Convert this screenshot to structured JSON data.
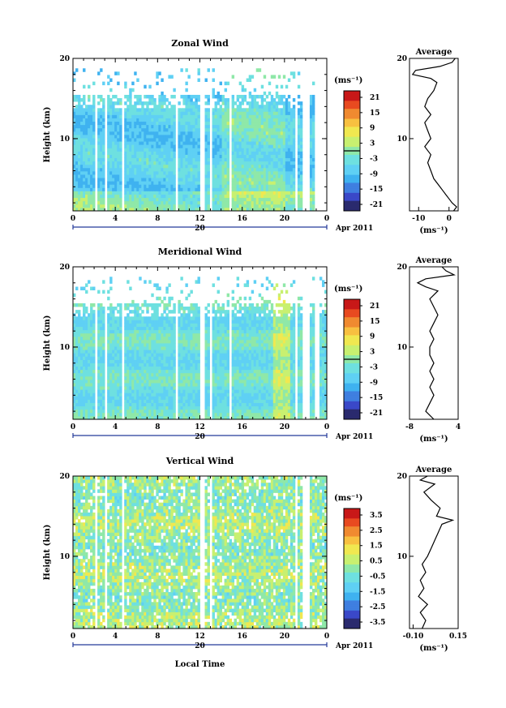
{
  "figure": {
    "xlabel": "Local Time",
    "date_label": "Apr 2011",
    "day_label": "20"
  },
  "panels": [
    {
      "key": "zonal",
      "title": "Zonal Wind",
      "unit": "(ms⁻¹)",
      "avg_title": "Average",
      "avg_xlabel": "(ms⁻¹)",
      "yticks": [
        "20",
        "10"
      ],
      "xticks": [
        "0",
        "4",
        "8",
        "12",
        "16",
        "20",
        "0"
      ],
      "cbar_labels": [
        "21",
        "15",
        "9",
        "3",
        "-3",
        "-9",
        "-15",
        "-21"
      ],
      "avg_xticks": [
        "-10",
        "0"
      ]
    },
    {
      "key": "meridional",
      "title": "Meridional Wind",
      "unit": "(ms⁻¹)",
      "avg_title": "Average",
      "avg_xlabel": "(ms⁻¹)",
      "yticks": [
        "20",
        "10"
      ],
      "xticks": [
        "0",
        "4",
        "8",
        "12",
        "16",
        "20",
        "0"
      ],
      "cbar_labels": [
        "21",
        "15",
        "9",
        "3",
        "-3",
        "-9",
        "-15",
        "-21"
      ],
      "avg_xticks": [
        "-8",
        "4"
      ]
    },
    {
      "key": "vertical",
      "title": "Vertical Wind",
      "unit": "(ms⁻¹)",
      "avg_title": "Average",
      "avg_xlabel": "(ms⁻¹)",
      "yticks": [
        "20",
        "10"
      ],
      "xticks": [
        "0",
        "4",
        "8",
        "12",
        "16",
        "20",
        "0"
      ],
      "cbar_labels": [
        "3.5",
        "2.5",
        "1.5",
        "0.5",
        "-0.5",
        "-1.5",
        "-2.5",
        "-3.5"
      ],
      "avg_xticks": [
        "-0.10",
        "0.15"
      ]
    }
  ],
  "chart_data": [
    {
      "type": "heatmap",
      "title": "Zonal Wind",
      "ylabel": "Height (km)",
      "xlabel": "",
      "x_unit": "local time (h)",
      "xlim": [
        0,
        24
      ],
      "ylim": [
        1,
        20
      ],
      "clim": [
        -24,
        24
      ],
      "colors": [
        "#2a2a6e",
        "#3a48c8",
        "#3f7fe0",
        "#3fb2f0",
        "#6ed8f0",
        "#8fe8a8",
        "#d8f060",
        "#f8e040",
        "#f8a830",
        "#f06020",
        "#d82010"
      ],
      "columns_missing": [
        [
          2.1,
          2.4
        ],
        [
          3.0,
          3.3
        ],
        [
          4.6,
          4.9
        ],
        [
          9.7,
          10.0
        ],
        [
          11.9,
          12.5
        ],
        [
          12.9,
          13.1
        ],
        [
          14.7,
          15.0
        ],
        [
          20.9,
          21.2
        ],
        [
          21.8,
          22.3
        ],
        [
          22.8,
          23.2
        ],
        [
          23.3,
          24
        ]
      ],
      "description_values": "mostly -6 to -12 m/s, near -3 below 4 km",
      "average_profile": {
        "xlim": [
          -13,
          3
        ],
        "height_km": [
          1,
          1.5,
          2,
          2.5,
          3,
          3.5,
          4,
          5,
          6,
          7,
          8,
          9,
          10,
          11,
          12,
          13,
          14,
          15,
          16,
          17,
          17.5,
          18,
          18.5,
          19,
          19.5,
          20
        ],
        "values": [
          1.5,
          2.5,
          1,
          0,
          -1,
          -2,
          -3,
          -5,
          -6,
          -7,
          -6,
          -8,
          -6,
          -7,
          -8,
          -6,
          -8,
          -7,
          -5,
          -4,
          -6,
          -12,
          -11,
          -3,
          1,
          2
        ]
      }
    },
    {
      "type": "heatmap",
      "title": "Meridional Wind",
      "ylabel": "Height (km)",
      "xlabel": "",
      "x_unit": "local time (h)",
      "xlim": [
        0,
        24
      ],
      "ylim": [
        1,
        20
      ],
      "clim": [
        -24,
        24
      ],
      "columns_missing": [
        [
          2.1,
          2.4
        ],
        [
          3.0,
          3.3
        ],
        [
          4.6,
          4.9
        ],
        [
          9.7,
          10.0
        ],
        [
          11.9,
          12.5
        ],
        [
          12.9,
          13.1
        ],
        [
          14.7,
          15.0
        ],
        [
          20.9,
          21.2
        ],
        [
          21.8,
          22.3
        ],
        [
          22.8,
          23.2
        ]
      ],
      "average_profile": {
        "xlim": [
          -8,
          4
        ],
        "height_km": [
          1,
          1.5,
          2,
          3,
          4,
          5,
          6,
          7,
          8,
          9,
          10,
          11,
          12,
          13,
          14,
          15,
          16,
          17,
          17.5,
          18,
          18.5,
          19,
          19.5,
          20
        ],
        "values": [
          -2,
          -3,
          -4,
          -3,
          -2,
          -3,
          -2,
          -3,
          -2,
          -3,
          -3,
          -2,
          -3,
          -2,
          -1,
          -2,
          -3,
          -1,
          -4,
          -6,
          -4,
          3,
          1,
          0
        ]
      }
    },
    {
      "type": "heatmap",
      "title": "Vertical Wind",
      "ylabel": "Height (km)",
      "xlabel": "Local Time",
      "x_unit": "local time (h)",
      "xlim": [
        0,
        24
      ],
      "ylim": [
        1,
        20
      ],
      "clim": [
        -4,
        4
      ],
      "columns_missing": [
        [
          2.1,
          2.4
        ],
        [
          3.0,
          3.3
        ],
        [
          4.6,
          4.9
        ],
        [
          12.0,
          12.5
        ],
        [
          12.9,
          13.1
        ],
        [
          20.9,
          21.2
        ],
        [
          21.8,
          22.3
        ]
      ],
      "average_profile": {
        "xlim": [
          -0.12,
          0.15
        ],
        "height_km": [
          1,
          2,
          3,
          4,
          5,
          6,
          7,
          8,
          9,
          10,
          11,
          12,
          13,
          14,
          14.5,
          15,
          16,
          17,
          18,
          19,
          19.5,
          20
        ],
        "values": [
          -0.05,
          -0.03,
          -0.06,
          -0.02,
          -0.07,
          -0.04,
          -0.06,
          -0.03,
          -0.05,
          -0.02,
          0.0,
          0.02,
          0.04,
          0.06,
          0.12,
          0.03,
          0.05,
          0.0,
          -0.04,
          0.02,
          -0.06,
          -0.02
        ]
      }
    }
  ]
}
